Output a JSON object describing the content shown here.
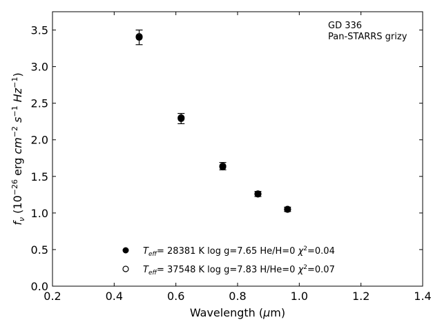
{
  "chart_data": {
    "type": "scatter",
    "annotation": [
      "GD 336",
      "Pan-STARRS grizy"
    ],
    "xlabel": "Wavelength (μm)",
    "ylabel": "f_ν (10^-26 erg cm^-2 s^-1 Hz^-1)",
    "xlim": [
      0.2,
      1.4
    ],
    "ylim": [
      0.0,
      3.75
    ],
    "xticks": [
      0.2,
      0.4,
      0.6,
      0.8,
      1.0,
      1.2,
      1.4
    ],
    "xtick_labels": [
      "0.2",
      "0.4",
      "0.6",
      "0.8",
      "1.0",
      "1.2",
      "1.4"
    ],
    "yticks": [
      0.0,
      0.5,
      1.0,
      1.5,
      2.0,
      2.5,
      3.0,
      3.5
    ],
    "ytick_labels": [
      "0.0",
      "0.5",
      "1.0",
      "1.5",
      "2.0",
      "2.5",
      "3.0",
      "3.5"
    ],
    "grid": false,
    "legend_position": "lower-center",
    "observed": {
      "x": [
        0.481,
        0.617,
        0.752,
        0.866,
        0.962
      ],
      "y": [
        3.4,
        2.29,
        1.64,
        1.26,
        1.05
      ],
      "yerr": [
        0.1,
        0.07,
        0.05,
        0.035,
        0.03
      ]
    },
    "series": [
      {
        "marker": "filled",
        "legend_parts": [
          "28381 K  log g=7.65  He/H=0  ",
          "=0.04"
        ],
        "x": [
          0.481,
          0.617,
          0.752,
          0.866,
          0.962
        ],
        "y": [
          3.4,
          2.29,
          1.63,
          1.26,
          1.05
        ]
      },
      {
        "marker": "open",
        "legend_parts": [
          "37548 K  log g=7.83  H/He=0  ",
          "=0.07"
        ],
        "x": [
          0.481,
          0.617,
          0.752,
          0.866,
          0.962
        ],
        "y": [
          3.41,
          2.3,
          1.64,
          1.26,
          1.05
        ]
      }
    ]
  }
}
